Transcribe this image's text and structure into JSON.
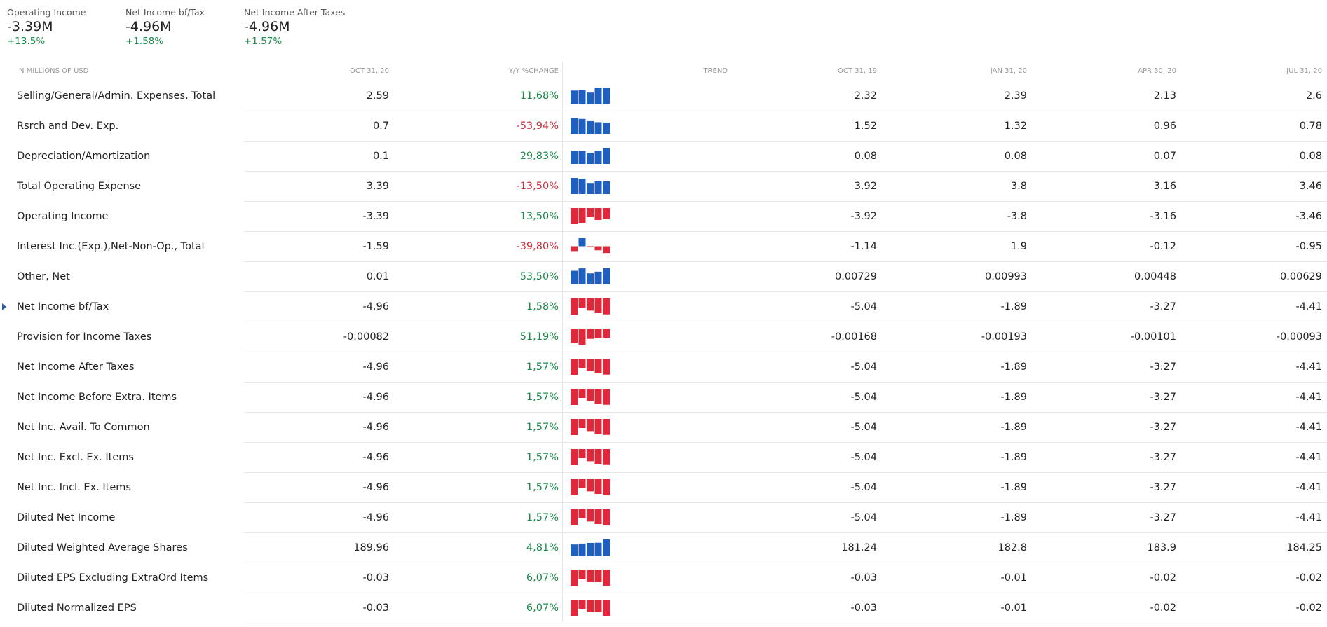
{
  "kpis": [
    {
      "label": "Operating Income",
      "value": "-3.39M",
      "change": "+13.5%"
    },
    {
      "label": "Net Income bf/Tax",
      "value": "-4.96M",
      "change": "+1.58%"
    },
    {
      "label": "Net Income After Taxes",
      "value": "-4.96M",
      "change": "+1.57%"
    }
  ],
  "table": {
    "headers": {
      "name": "IN MILLIONS OF USD",
      "current": "OCT 31, 20",
      "yoy": "Y/Y %CHANGE",
      "trend": "TREND",
      "p1": "OCT 31, 19",
      "p2": "JAN 31, 20",
      "p3": "APR 30, 20",
      "p4": "JUL 31, 20"
    },
    "colors": {
      "positive_bar": "#1f5fc0",
      "negative_bar": "#e0283a",
      "positive_text": "#1a8a4a",
      "negative_text": "#c8303d"
    },
    "rows": [
      {
        "name": "Selling/General/Admin. Expenses, Total",
        "current": "2.59",
        "yoy": "11,68%",
        "yoy_sign": "pos",
        "p1": "2.32",
        "p2": "2.39",
        "p3": "2.13",
        "p4": "2.6",
        "trend": [
          2.32,
          2.39,
          2.13,
          2.6,
          2.59
        ]
      },
      {
        "name": "Rsrch and Dev. Exp.",
        "current": "0.7",
        "yoy": "-53,94%",
        "yoy_sign": "neg",
        "p1": "1.52",
        "p2": "1.32",
        "p3": "0.96",
        "p4": "0.78",
        "trend": [
          1.52,
          1.32,
          0.96,
          0.78,
          0.7
        ]
      },
      {
        "name": "Depreciation/Amortization",
        "current": "0.1",
        "yoy": "29,83%",
        "yoy_sign": "pos",
        "p1": "0.08",
        "p2": "0.08",
        "p3": "0.07",
        "p4": "0.08",
        "trend": [
          0.08,
          0.08,
          0.07,
          0.08,
          0.1
        ]
      },
      {
        "name": "Total Operating Expense",
        "current": "3.39",
        "yoy": "-13,50%",
        "yoy_sign": "neg",
        "p1": "3.92",
        "p2": "3.8",
        "p3": "3.16",
        "p4": "3.46",
        "trend": [
          3.92,
          3.8,
          3.16,
          3.46,
          3.39
        ]
      },
      {
        "name": "Operating Income",
        "current": "-3.39",
        "yoy": "13,50%",
        "yoy_sign": "pos",
        "p1": "-3.92",
        "p2": "-3.8",
        "p3": "-3.16",
        "p4": "-3.46",
        "trend": [
          -3.92,
          -3.8,
          -3.16,
          -3.46,
          -3.39
        ]
      },
      {
        "name": "Interest Inc.(Exp.),Net-Non-Op., Total",
        "current": "-1.59",
        "yoy": "-39,80%",
        "yoy_sign": "neg",
        "p1": "-1.14",
        "p2": "1.9",
        "p3": "-0.12",
        "p4": "-0.95",
        "trend": [
          -1.14,
          1.9,
          -0.12,
          -0.95,
          -1.59
        ]
      },
      {
        "name": "Other, Net",
        "current": "0.01",
        "yoy": "53,50%",
        "yoy_sign": "pos",
        "p1": "0.00729",
        "p2": "0.00993",
        "p3": "0.00448",
        "p4": "0.00629",
        "trend": [
          0.00729,
          0.00993,
          0.00448,
          0.00629,
          0.01
        ]
      },
      {
        "name": "Net Income bf/Tax",
        "current": "-4.96",
        "yoy": "1,58%",
        "yoy_sign": "pos",
        "p1": "-5.04",
        "p2": "-1.89",
        "p3": "-3.27",
        "p4": "-4.41",
        "trend": [
          -5.04,
          -1.89,
          -3.27,
          -4.41,
          -4.96
        ],
        "selected": true
      },
      {
        "name": "Provision for Income Taxes",
        "current": "-0.00082",
        "yoy": "51,19%",
        "yoy_sign": "pos",
        "p1": "-0.00168",
        "p2": "-0.00193",
        "p3": "-0.00101",
        "p4": "-0.00093",
        "trend": [
          -0.00168,
          -0.00193,
          -0.00101,
          -0.00093,
          -0.00082
        ]
      },
      {
        "name": "Net Income After Taxes",
        "current": "-4.96",
        "yoy": "1,57%",
        "yoy_sign": "pos",
        "p1": "-5.04",
        "p2": "-1.89",
        "p3": "-3.27",
        "p4": "-4.41",
        "trend": [
          -5.04,
          -1.89,
          -3.27,
          -4.41,
          -4.96
        ]
      },
      {
        "name": "Net Income Before Extra. Items",
        "current": "-4.96",
        "yoy": "1,57%",
        "yoy_sign": "pos",
        "p1": "-5.04",
        "p2": "-1.89",
        "p3": "-3.27",
        "p4": "-4.41",
        "trend": [
          -5.04,
          -1.89,
          -3.27,
          -4.41,
          -4.96
        ]
      },
      {
        "name": "Net Inc. Avail. To Common",
        "current": "-4.96",
        "yoy": "1,57%",
        "yoy_sign": "pos",
        "p1": "-5.04",
        "p2": "-1.89",
        "p3": "-3.27",
        "p4": "-4.41",
        "trend": [
          -5.04,
          -1.89,
          -3.27,
          -4.41,
          -4.96
        ]
      },
      {
        "name": "Net Inc. Excl. Ex. Items",
        "current": "-4.96",
        "yoy": "1,57%",
        "yoy_sign": "pos",
        "p1": "-5.04",
        "p2": "-1.89",
        "p3": "-3.27",
        "p4": "-4.41",
        "trend": [
          -5.04,
          -1.89,
          -3.27,
          -4.41,
          -4.96
        ]
      },
      {
        "name": "Net Inc. Incl. Ex. Items",
        "current": "-4.96",
        "yoy": "1,57%",
        "yoy_sign": "pos",
        "p1": "-5.04",
        "p2": "-1.89",
        "p3": "-3.27",
        "p4": "-4.41",
        "trend": [
          -5.04,
          -1.89,
          -3.27,
          -4.41,
          -4.96
        ]
      },
      {
        "name": "Diluted Net Income",
        "current": "-4.96",
        "yoy": "1,57%",
        "yoy_sign": "pos",
        "p1": "-5.04",
        "p2": "-1.89",
        "p3": "-3.27",
        "p4": "-4.41",
        "trend": [
          -5.04,
          -1.89,
          -3.27,
          -4.41,
          -4.96
        ]
      },
      {
        "name": "Diluted Weighted Average Shares",
        "current": "189.96",
        "yoy": "4,81%",
        "yoy_sign": "pos",
        "p1": "181.24",
        "p2": "182.8",
        "p3": "183.9",
        "p4": "184.25",
        "trend": [
          181.24,
          182.8,
          183.9,
          184.25,
          189.96
        ]
      },
      {
        "name": "Diluted EPS Excluding ExtraOrd Items",
        "current": "-0.03",
        "yoy": "6,07%",
        "yoy_sign": "pos",
        "p1": "-0.03",
        "p2": "-0.01",
        "p3": "-0.02",
        "p4": "-0.02",
        "trend": [
          -0.03,
          -0.01,
          -0.02,
          -0.02,
          -0.03
        ]
      },
      {
        "name": "Diluted Normalized EPS",
        "current": "-0.03",
        "yoy": "6,07%",
        "yoy_sign": "pos",
        "p1": "-0.03",
        "p2": "-0.01",
        "p3": "-0.02",
        "p4": "-0.02",
        "trend": [
          -0.03,
          -0.01,
          -0.02,
          -0.02,
          -0.03
        ]
      }
    ]
  }
}
